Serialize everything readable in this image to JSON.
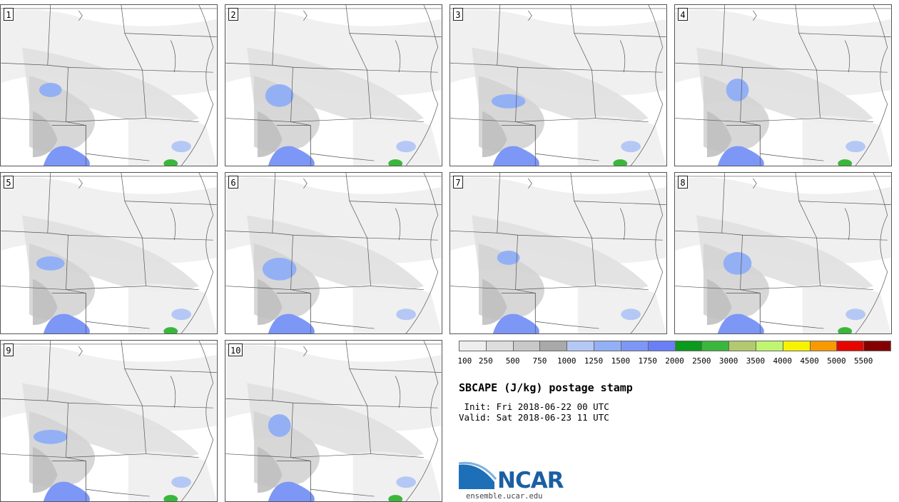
{
  "panels": [
    {
      "label": "1",
      "cells": [
        [
          20,
          180
        ],
        [
          60,
          130
        ],
        [
          80,
          205
        ]
      ],
      "green": [
        [
          235,
          225
        ]
      ]
    },
    {
      "label": "2",
      "cells": [
        [
          30,
          150
        ],
        [
          70,
          210
        ],
        [
          110,
          200
        ]
      ],
      "green": [
        [
          550,
          215
        ]
      ]
    },
    {
      "label": "3",
      "cells": [
        [
          40,
          130
        ],
        [
          60,
          210
        ],
        [
          90,
          220
        ]
      ],
      "green": [
        [
          880,
          226
        ]
      ]
    },
    {
      "label": "4",
      "cells": [
        [
          50,
          140
        ],
        [
          70,
          210
        ],
        [
          100,
          210
        ]
      ],
      "green": [
        [
          1205,
          226
        ]
      ]
    },
    {
      "label": "5",
      "cells": [
        [
          40,
          120
        ],
        [
          60,
          180
        ],
        [
          80,
          210
        ]
      ],
      "green": [
        [
          245,
          226
        ]
      ]
    },
    {
      "label": "6",
      "cells": [
        [
          50,
          120
        ],
        [
          70,
          200
        ],
        [
          100,
          210
        ]
      ],
      "green": []
    },
    {
      "label": "7",
      "cells": [
        [
          50,
          130
        ],
        [
          70,
          205
        ],
        [
          100,
          215
        ]
      ],
      "green": []
    },
    {
      "label": "8",
      "cells": [
        [
          40,
          130
        ],
        [
          60,
          200
        ],
        [
          100,
          215
        ]
      ],
      "green": [
        [
          1170,
          226
        ]
      ]
    },
    {
      "label": "9",
      "cells": [
        [
          60,
          115
        ],
        [
          70,
          210
        ],
        [
          90,
          215
        ]
      ],
      "green": [
        [
          232,
          226
        ]
      ]
    },
    {
      "label": "10",
      "cells": [
        [
          60,
          130
        ],
        [
          70,
          215
        ],
        [
          100,
          215
        ]
      ],
      "green": [
        [
          545,
          226
        ]
      ]
    }
  ],
  "legend": {
    "colors": [
      "#eeeeee",
      "#dddddd",
      "#c8c8c8",
      "#a9a9a9",
      "#b5c8f5",
      "#93b0f5",
      "#7d97f6",
      "#6a7ff7",
      "#0a9a1c",
      "#3bb63c",
      "#b2c96e",
      "#bff570",
      "#f7f200",
      "#f79a00",
      "#e60600",
      "#840000"
    ],
    "labels": [
      "100",
      "250",
      "500",
      "750",
      "1000",
      "1250",
      "1500",
      "1750",
      "2000",
      "2500",
      "3000",
      "3500",
      "4000",
      "4500",
      "5000",
      "5500"
    ]
  },
  "title": "SBCAPE (J/kg) postage stamp",
  "init": " Init: Fri 2018-06-22 00 UTC",
  "valid": "Valid: Sat 2018-06-23 11 UTC",
  "logo_text": "NCAR",
  "site": "ensemble.ucar.edu"
}
